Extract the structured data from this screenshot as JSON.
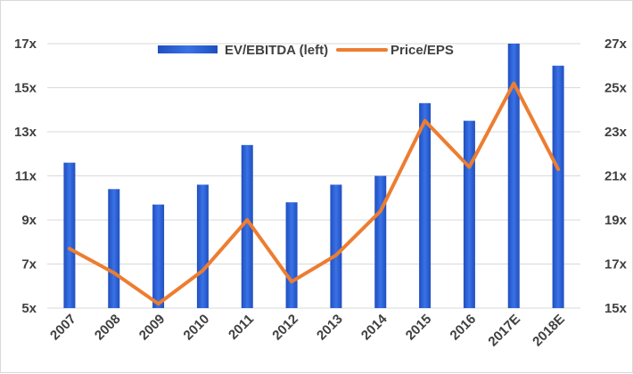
{
  "chart_data": {
    "type": "bar+line",
    "categories": [
      "2007",
      "2008",
      "2009",
      "2010",
      "2011",
      "2012",
      "2013",
      "2014",
      "2015",
      "2016",
      "2017E",
      "2018E"
    ],
    "series": [
      {
        "name": "EV/EBITDA (left)",
        "type": "bar",
        "axis": "left",
        "color": "#2e5fd6",
        "values": [
          11.6,
          10.4,
          9.7,
          10.6,
          12.4,
          9.8,
          10.6,
          11.0,
          14.3,
          13.5,
          17.0,
          16.0
        ]
      },
      {
        "name": "Price/EPS",
        "type": "line",
        "axis": "right",
        "color": "#ed7d31",
        "values": [
          17.7,
          16.6,
          15.2,
          16.7,
          19.0,
          16.2,
          17.4,
          19.4,
          23.5,
          21.4,
          25.2,
          21.3
        ]
      }
    ],
    "left_axis": {
      "min": 5,
      "max": 17,
      "ticks": [
        "5x",
        "7x",
        "9x",
        "11x",
        "13x",
        "15x",
        "17x"
      ]
    },
    "right_axis": {
      "min": 15,
      "max": 27,
      "ticks": [
        "15x",
        "17x",
        "19x",
        "21x",
        "23x",
        "25x",
        "27x"
      ]
    },
    "legend": {
      "placement": "top-center"
    },
    "grid": "horizontal"
  }
}
